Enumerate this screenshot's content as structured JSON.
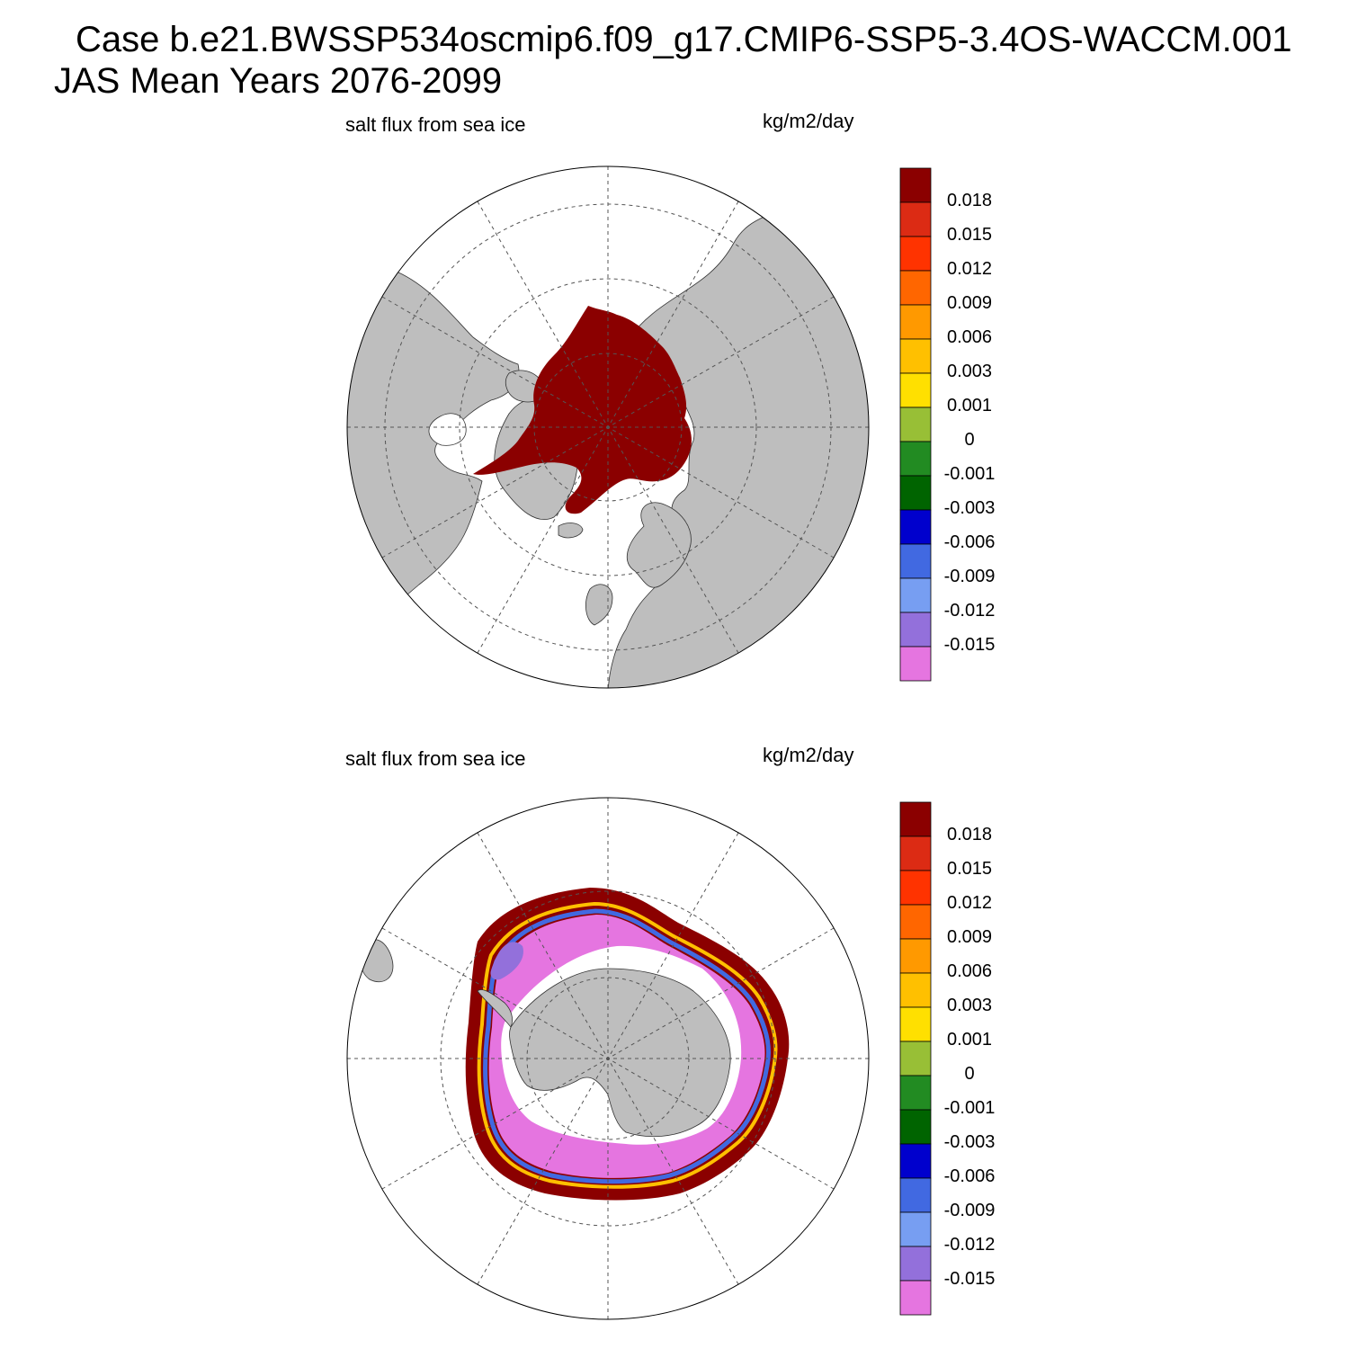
{
  "title": {
    "line1": "Case b.e21.BWSSP534oscmip6.f09_g17.CMIP6-SSP5-3.4OS-WACCM.001",
    "line2": "JAS Mean   Years 2076-2099"
  },
  "panels": [
    {
      "id": "north",
      "hemisphere": "Arctic",
      "variable_label": "salt flux from sea ice",
      "units_label": "kg/m2/day"
    },
    {
      "id": "south",
      "hemisphere": "Antarctic",
      "variable_label": "salt flux from sea ice",
      "units_label": "kg/m2/day"
    }
  ],
  "colorbar": {
    "labels": [
      "0.018",
      "0.015",
      "0.012",
      "0.009",
      "0.006",
      "0.003",
      "0.001",
      "0",
      "-0.001",
      "-0.003",
      "-0.006",
      "-0.009",
      "-0.012",
      "-0.015"
    ],
    "colors": [
      "#8b0000",
      "#dc2b14",
      "#ff3300",
      "#ff6600",
      "#ff9900",
      "#ffc000",
      "#ffe000",
      "#98bf36",
      "#228b22",
      "#006400",
      "#0000cd",
      "#4169e1",
      "#779ef2",
      "#9370db",
      "#e575e0"
    ]
  },
  "colors": {
    "land": "#bebebe",
    "salt_flux_max": "#8b0000",
    "salt_flux_min": "#e575e0",
    "grid": "#555555"
  }
}
